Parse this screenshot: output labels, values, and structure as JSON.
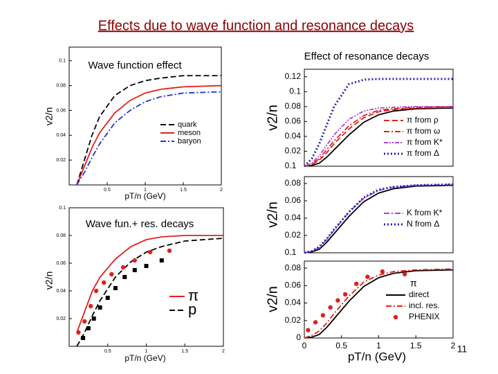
{
  "title": "Effects due to wave function and resonance decays",
  "page_number": "11",
  "chart_data": [
    {
      "type": "line",
      "title": "Wave function effect",
      "xlabel": "pT/n (GeV)",
      "ylabel": "v2/n",
      "xlim": [
        0,
        2
      ],
      "ylim": [
        0,
        0.111
      ],
      "xticks": [
        0.5,
        1,
        1.5,
        2
      ],
      "yticks": [
        0.02,
        0.04,
        0.06,
        0.08,
        0.1
      ],
      "legend": "lower right",
      "x": [
        0.1,
        0.2,
        0.3,
        0.4,
        0.6,
        0.8,
        1,
        1.2,
        1.5,
        2
      ],
      "series": [
        {
          "name": "quark",
          "color": "#000000",
          "style": "dashed",
          "values": [
            0,
            0.02,
            0.04,
            0.055,
            0.072,
            0.08,
            0.084,
            0.086,
            0.088,
            0.088
          ]
        },
        {
          "name": "meson",
          "color": "#e0201b",
          "style": "solid",
          "values": [
            0,
            0.015,
            0.03,
            0.042,
            0.058,
            0.068,
            0.074,
            0.077,
            0.079,
            0.08
          ]
        },
        {
          "name": "baryon",
          "color": "#2233cc",
          "style": "dashdot",
          "values": [
            0,
            0.01,
            0.022,
            0.033,
            0.05,
            0.06,
            0.067,
            0.071,
            0.074,
            0.075
          ]
        }
      ]
    },
    {
      "type": "line",
      "title": "Wave fun.+ res. decays",
      "xlabel": "pT/n (GeV)",
      "ylabel": "v2/n",
      "xlim": [
        0,
        2
      ],
      "ylim": [
        0,
        0.1
      ],
      "xticks": [
        0.5,
        1,
        1.5,
        2
      ],
      "yticks": [
        0.02,
        0.04,
        0.06,
        0.08,
        0.1
      ],
      "legend": "lower right",
      "x": [
        0.1,
        0.2,
        0.3,
        0.4,
        0.6,
        0.8,
        1,
        1.2,
        1.5,
        2
      ],
      "series": [
        {
          "name": "π",
          "color": "#e0201b",
          "style": "solid",
          "values": [
            0.01,
            0.025,
            0.04,
            0.05,
            0.063,
            0.072,
            0.077,
            0.079,
            0.08,
            0.08
          ]
        },
        {
          "name": "p",
          "color": "#000000",
          "style": "dashed",
          "values": [
            0,
            0.01,
            0.022,
            0.033,
            0.05,
            0.061,
            0.068,
            0.072,
            0.076,
            0.078
          ]
        },
        {
          "color": "#e0201b",
          "marker": "circle",
          "x": [
            0.12,
            0.2,
            0.28,
            0.35,
            0.45,
            0.55,
            0.7,
            0.85,
            1.05,
            1.3
          ],
          "values": [
            0.01,
            0.018,
            0.029,
            0.04,
            0.046,
            0.052,
            0.057,
            0.062,
            0.068,
            0.069
          ]
        },
        {
          "color": "#000000",
          "marker": "square",
          "x": [
            0.18,
            0.25,
            0.32,
            0.4,
            0.5,
            0.6,
            0.72,
            0.85,
            1.0,
            1.2
          ],
          "values": [
            0.006,
            0.013,
            0.02,
            0.028,
            0.035,
            0.042,
            0.05,
            0.055,
            0.058,
            0.062
          ]
        }
      ]
    },
    {
      "type": "line",
      "title": "Effect of resonance decays",
      "ylabel": "v2/n",
      "xlim": [
        0,
        2
      ],
      "ylim": [
        0,
        0.13
      ],
      "yticks": [
        0.02,
        0.04,
        0.06,
        0.08,
        0.1,
        0.12
      ],
      "annotation": "0.1",
      "legend": "lower right",
      "x": [
        0,
        0.1,
        0.2,
        0.3,
        0.4,
        0.6,
        0.8,
        1,
        1.2,
        1.5,
        2
      ],
      "reference_line": {
        "color": "#000000",
        "values": [
          0,
          0.001,
          0.004,
          0.012,
          0.022,
          0.042,
          0.059,
          0.069,
          0.074,
          0.077,
          0.078
        ]
      },
      "series": [
        {
          "name": "π from ρ",
          "color": "#e0201b",
          "style": "dashed",
          "values": [
            0,
            0.002,
            0.008,
            0.018,
            0.03,
            0.05,
            0.065,
            0.073,
            0.076,
            0.078,
            0.079
          ]
        },
        {
          "name": "π from ω",
          "color": "#e0201b",
          "style": "dashdot",
          "values": [
            0,
            0.003,
            0.01,
            0.022,
            0.034,
            0.054,
            0.068,
            0.075,
            0.077,
            0.079,
            0.08
          ]
        },
        {
          "name": "π from K*",
          "color": "#b040d0",
          "style": "dashdotdot",
          "values": [
            0,
            0.004,
            0.014,
            0.028,
            0.042,
            0.063,
            0.074,
            0.078,
            0.079,
            0.08,
            0.08
          ]
        },
        {
          "name": "π from Δ",
          "color": "#2222bb",
          "style": "dotted",
          "values": [
            0,
            0.01,
            0.03,
            0.055,
            0.08,
            0.11,
            0.116,
            0.117,
            0.117,
            0.117,
            0.117
          ]
        }
      ]
    },
    {
      "type": "line",
      "ylabel": "v2/n",
      "xlim": [
        0,
        2
      ],
      "ylim": [
        0,
        0.088
      ],
      "yticks": [
        0.02,
        0.04,
        0.06,
        0.08
      ],
      "annotation": "0.1",
      "legend": "lower right",
      "x": [
        0,
        0.1,
        0.2,
        0.3,
        0.4,
        0.6,
        0.8,
        1,
        1.2,
        1.5,
        2
      ],
      "reference_line": {
        "color": "#000000",
        "values": [
          0,
          0.001,
          0.004,
          0.012,
          0.022,
          0.042,
          0.059,
          0.069,
          0.074,
          0.077,
          0.078
        ]
      },
      "series": [
        {
          "name": "K from K*",
          "color": "#b040d0",
          "style": "dashdot",
          "values": [
            0,
            0.002,
            0.006,
            0.015,
            0.026,
            0.047,
            0.063,
            0.072,
            0.076,
            0.078,
            0.079
          ]
        },
        {
          "name": "N from Δ",
          "color": "#2222bb",
          "style": "dotted",
          "values": [
            0,
            0.002,
            0.007,
            0.016,
            0.027,
            0.047,
            0.064,
            0.073,
            0.076,
            0.078,
            0.079
          ]
        }
      ]
    },
    {
      "type": "line",
      "xlabel": "pT/n (GeV)",
      "ylabel": "v2/n",
      "xlim": [
        0,
        2
      ],
      "ylim": [
        0,
        0.088
      ],
      "xticks": [
        0,
        0.5,
        1,
        1.5,
        2
      ],
      "yticks": [
        0,
        0.02,
        0.04,
        0.06,
        0.08
      ],
      "legend": "lower right",
      "legend_title": "π",
      "x": [
        0,
        0.1,
        0.2,
        0.3,
        0.4,
        0.6,
        0.8,
        1,
        1.2,
        1.5,
        2
      ],
      "series": [
        {
          "name": "direct",
          "color": "#000000",
          "style": "solid",
          "values": [
            0,
            0.001,
            0.004,
            0.012,
            0.022,
            0.042,
            0.059,
            0.069,
            0.074,
            0.077,
            0.078
          ]
        },
        {
          "name": "incl. res.",
          "color": "#e0201b",
          "style": "dashdot",
          "values": [
            0,
            0.003,
            0.008,
            0.017,
            0.028,
            0.048,
            0.064,
            0.072,
            0.076,
            0.078,
            0.079
          ]
        },
        {
          "name": "PHENIX",
          "color": "#e0201b",
          "marker": "circle",
          "x": [
            0.05,
            0.15,
            0.25,
            0.35,
            0.45,
            0.55,
            0.7,
            0.85,
            1.05,
            1.35
          ],
          "values": [
            0.009,
            0.018,
            0.026,
            0.035,
            0.043,
            0.05,
            0.062,
            0.07,
            0.076,
            0.073
          ]
        }
      ]
    }
  ]
}
